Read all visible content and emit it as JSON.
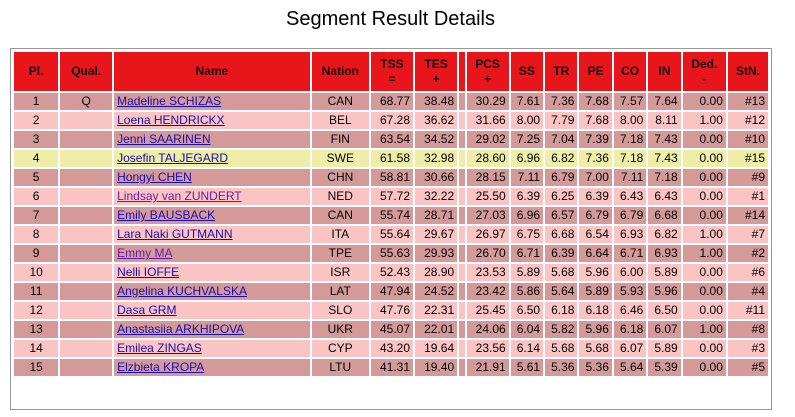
{
  "page": {
    "title": "Segment Result Details"
  },
  "columns": {
    "pl": "Pl.",
    "qual": "Qual.",
    "name": "Name",
    "nation": "Nation",
    "tss": [
      "TSS",
      "="
    ],
    "tes": [
      "TES",
      "+"
    ],
    "pcs": [
      "PCS",
      "+"
    ],
    "ss": "SS",
    "tr": "TR",
    "pe": "PE",
    "co": "CO",
    "in": "IN",
    "ded": [
      "Ded.",
      "-"
    ],
    "stn": "StN."
  },
  "rows": [
    {
      "pl": "1",
      "qual": "Q",
      "name": "Madeline SCHIZAS",
      "nation": "CAN",
      "tss": "68.77",
      "tes": "38.48",
      "pcs": "30.29",
      "ss": "7.61",
      "tr": "7.36",
      "pe": "7.68",
      "co": "7.57",
      "in": "7.64",
      "ded": "0.00",
      "stn": "#13"
    },
    {
      "pl": "2",
      "qual": "",
      "name": "Loena HENDRICKX",
      "nation": "BEL",
      "tss": "67.28",
      "tes": "36.62",
      "pcs": "31.66",
      "ss": "8.00",
      "tr": "7.79",
      "pe": "7.68",
      "co": "8.00",
      "in": "8.11",
      "ded": "1.00",
      "stn": "#12"
    },
    {
      "pl": "3",
      "qual": "",
      "name": "Jenni SAARINEN",
      "nation": "FIN",
      "tss": "63.54",
      "tes": "34.52",
      "pcs": "29.02",
      "ss": "7.25",
      "tr": "7.04",
      "pe": "7.39",
      "co": "7.18",
      "in": "7.43",
      "ded": "0.00",
      "stn": "#10"
    },
    {
      "pl": "4",
      "qual": "",
      "name": "Josefin TALJEGARD",
      "nation": "SWE",
      "tss": "61.58",
      "tes": "32.98",
      "pcs": "28.60",
      "ss": "6.96",
      "tr": "6.82",
      "pe": "7.36",
      "co": "7.18",
      "in": "7.43",
      "ded": "0.00",
      "stn": "#15"
    },
    {
      "pl": "5",
      "qual": "",
      "name": "Hongyi CHEN",
      "nation": "CHN",
      "tss": "58.81",
      "tes": "30.66",
      "pcs": "28.15",
      "ss": "7.11",
      "tr": "6.79",
      "pe": "7.00",
      "co": "7.11",
      "in": "7.18",
      "ded": "0.00",
      "stn": "#9"
    },
    {
      "pl": "6",
      "qual": "",
      "name": "Lindsay van ZUNDERT",
      "nation": "NED",
      "tss": "57.72",
      "tes": "32.22",
      "pcs": "25.50",
      "ss": "6.39",
      "tr": "6.25",
      "pe": "6.39",
      "co": "6.43",
      "in": "6.43",
      "ded": "0.00",
      "stn": "#1"
    },
    {
      "pl": "7",
      "qual": "",
      "name": "Emily BAUSBACK",
      "nation": "CAN",
      "tss": "55.74",
      "tes": "28.71",
      "pcs": "27.03",
      "ss": "6.96",
      "tr": "6.57",
      "pe": "6.79",
      "co": "6.79",
      "in": "6.68",
      "ded": "0.00",
      "stn": "#14"
    },
    {
      "pl": "8",
      "qual": "",
      "name": "Lara Naki GUTMANN",
      "nation": "ITA",
      "tss": "55.64",
      "tes": "29.67",
      "pcs": "26.97",
      "ss": "6.75",
      "tr": "6.68",
      "pe": "6.54",
      "co": "6.93",
      "in": "6.82",
      "ded": "1.00",
      "stn": "#7"
    },
    {
      "pl": "9",
      "qual": "",
      "name": "Emmy MA",
      "nation": "TPE",
      "tss": "55.63",
      "tes": "29.93",
      "pcs": "26.70",
      "ss": "6.71",
      "tr": "6.39",
      "pe": "6.64",
      "co": "6.71",
      "in": "6.93",
      "ded": "1.00",
      "stn": "#2"
    },
    {
      "pl": "10",
      "qual": "",
      "name": "Nelli IOFFE",
      "nation": "ISR",
      "tss": "52.43",
      "tes": "28.90",
      "pcs": "23.53",
      "ss": "5.89",
      "tr": "5.68",
      "pe": "5.96",
      "co": "6.00",
      "in": "5.89",
      "ded": "0.00",
      "stn": "#6"
    },
    {
      "pl": "11",
      "qual": "",
      "name": "Angelina KUCHVALSKA",
      "nation": "LAT",
      "tss": "47.94",
      "tes": "24.52",
      "pcs": "23.42",
      "ss": "5.86",
      "tr": "5.64",
      "pe": "5.89",
      "co": "5.93",
      "in": "5.96",
      "ded": "0.00",
      "stn": "#4"
    },
    {
      "pl": "12",
      "qual": "",
      "name": "Dasa GRM",
      "nation": "SLO",
      "tss": "47.76",
      "tes": "22.31",
      "pcs": "25.45",
      "ss": "6.50",
      "tr": "6.18",
      "pe": "6.18",
      "co": "6.46",
      "in": "6.50",
      "ded": "0.00",
      "stn": "#11"
    },
    {
      "pl": "13",
      "qual": "",
      "name": "Anastasiia ARKHIPOVA",
      "nation": "UKR",
      "tss": "45.07",
      "tes": "22.01",
      "pcs": "24.06",
      "ss": "6.04",
      "tr": "5.82",
      "pe": "5.96",
      "co": "6.18",
      "in": "6.07",
      "ded": "1.00",
      "stn": "#8"
    },
    {
      "pl": "14",
      "qual": "",
      "name": "Emilea ZINGAS",
      "nation": "CYP",
      "tss": "43.20",
      "tes": "19.64",
      "pcs": "23.56",
      "ss": "6.14",
      "tr": "5.68",
      "pe": "5.68",
      "co": "6.07",
      "in": "5.89",
      "ded": "0.00",
      "stn": "#3"
    },
    {
      "pl": "15",
      "qual": "",
      "name": "Elzbieta KROPA",
      "nation": "LTU",
      "tss": "41.31",
      "tes": "19.40",
      "pcs": "21.91",
      "ss": "5.61",
      "tr": "5.36",
      "pe": "5.36",
      "co": "5.64",
      "in": "5.39",
      "ded": "0.00",
      "stn": "#5"
    }
  ],
  "highlighted_row": 3,
  "colors": {
    "header_red": "#e8151b",
    "row_dark": "#d49a9a",
    "row_light": "#fbc4c4",
    "row_highlight": "#eeeea8",
    "link": "#1a0dab",
    "link_visited": "#681da8"
  }
}
